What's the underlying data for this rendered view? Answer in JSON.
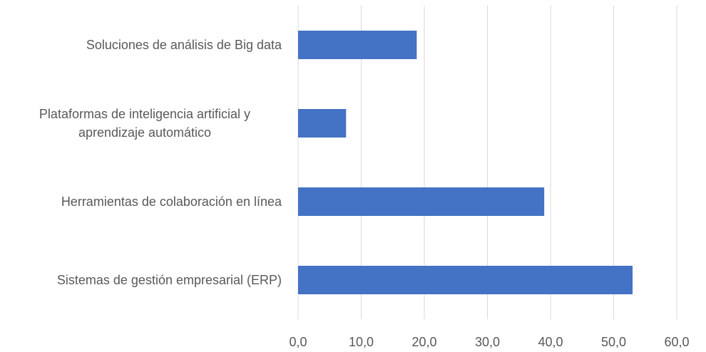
{
  "chart_data": {
    "type": "bar",
    "orientation": "horizontal",
    "categories": [
      "Soluciones de análisis de Big data",
      "Plataformas de inteligencia artificial y aprendizaje automático",
      "Herramientas de colaboración en línea",
      "Sistemas de gestión empresarial (ERP)"
    ],
    "values": [
      18.8,
      7.6,
      39.0,
      53.0
    ],
    "color": "#4472c4",
    "xlim": [
      0,
      60
    ],
    "xticks": [
      {
        "value": 0,
        "label": "0,0"
      },
      {
        "value": 10,
        "label": "10,0"
      },
      {
        "value": 20,
        "label": "20,0"
      },
      {
        "value": 30,
        "label": "30,0"
      },
      {
        "value": 40,
        "label": "40,0"
      },
      {
        "value": 50,
        "label": "50,0"
      },
      {
        "value": 60,
        "label": "60,0"
      }
    ],
    "grid": true
  }
}
